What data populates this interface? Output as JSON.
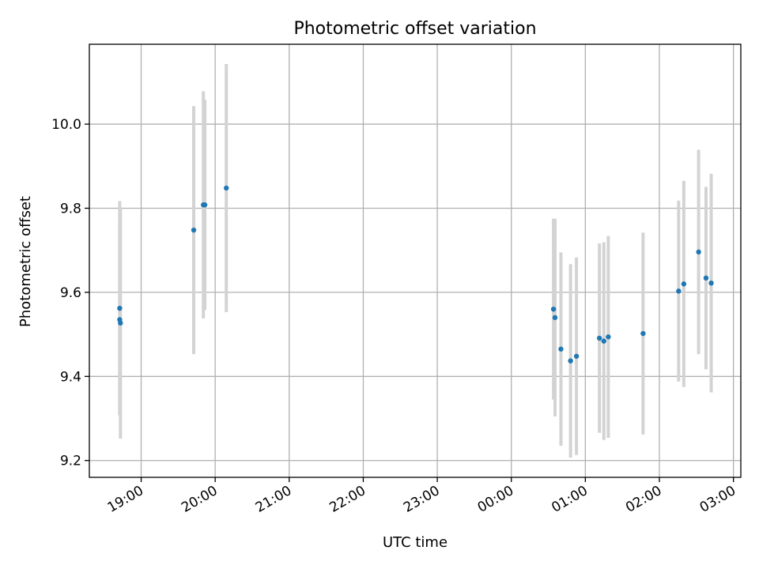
{
  "chart_data": {
    "type": "scatter",
    "title": "Photometric offset variation",
    "xlabel": "UTC time",
    "ylabel": "Photometric offset",
    "x_unit": "hours after 19:00 UTC",
    "xlim": [
      -0.7,
      8.1
    ],
    "ylim": [
      9.16,
      10.19
    ],
    "grid": true,
    "x_ticks": [
      {
        "label": "19:00",
        "value": 0
      },
      {
        "label": "20:00",
        "value": 1
      },
      {
        "label": "21:00",
        "value": 2
      },
      {
        "label": "22:00",
        "value": 3
      },
      {
        "label": "23:00",
        "value": 4
      },
      {
        "label": "00:00",
        "value": 5
      },
      {
        "label": "01:00",
        "value": 6
      },
      {
        "label": "02:00",
        "value": 7
      },
      {
        "label": "03:00",
        "value": 8
      }
    ],
    "y_ticks": [
      {
        "label": "9.2",
        "value": 9.2
      },
      {
        "label": "9.4",
        "value": 9.4
      },
      {
        "label": "9.6",
        "value": 9.6
      },
      {
        "label": "9.8",
        "value": 9.8
      },
      {
        "label": "10.0",
        "value": 10.0
      }
    ],
    "point_color": "#1f77b4",
    "errorbar_color": "#d3d3d3",
    "points": [
      {
        "x": -0.29,
        "y": 9.562,
        "err": 0.255
      },
      {
        "x": -0.29,
        "y": 9.535,
        "err": 0.225
      },
      {
        "x": -0.28,
        "y": 9.527,
        "err": 0.275
      },
      {
        "x": 0.71,
        "y": 9.748,
        "err": 0.295
      },
      {
        "x": 0.84,
        "y": 9.808,
        "err": 0.27
      },
      {
        "x": 0.86,
        "y": 9.808,
        "err": 0.25
      },
      {
        "x": 1.15,
        "y": 9.848,
        "err": 0.295
      },
      {
        "x": 5.57,
        "y": 9.56,
        "err": 0.215
      },
      {
        "x": 5.59,
        "y": 9.54,
        "err": 0.235
      },
      {
        "x": 5.67,
        "y": 9.465,
        "err": 0.23
      },
      {
        "x": 5.8,
        "y": 9.437,
        "err": 0.23
      },
      {
        "x": 5.88,
        "y": 9.448,
        "err": 0.235
      },
      {
        "x": 6.19,
        "y": 9.491,
        "err": 0.225
      },
      {
        "x": 6.25,
        "y": 9.484,
        "err": 0.235
      },
      {
        "x": 6.31,
        "y": 9.494,
        "err": 0.24
      },
      {
        "x": 6.78,
        "y": 9.502,
        "err": 0.24
      },
      {
        "x": 7.26,
        "y": 9.603,
        "err": 0.215
      },
      {
        "x": 7.33,
        "y": 9.62,
        "err": 0.245
      },
      {
        "x": 7.53,
        "y": 9.696,
        "err": 0.243
      },
      {
        "x": 7.63,
        "y": 9.634,
        "err": 0.217
      },
      {
        "x": 7.7,
        "y": 9.622,
        "err": 0.26
      }
    ]
  }
}
